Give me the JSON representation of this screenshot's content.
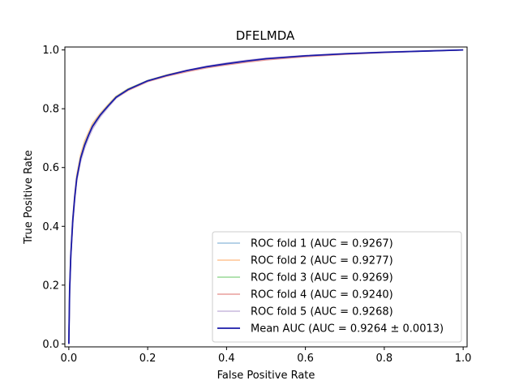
{
  "chart_data": {
    "type": "line",
    "title": "DFELMDA",
    "xlabel": "False Positive Rate",
    "ylabel": "True Positive Rate",
    "xlim": [
      -0.01,
      1.01
    ],
    "ylim": [
      -0.01,
      1.01
    ],
    "xticks": [
      "0.0",
      "0.2",
      "0.4",
      "0.6",
      "0.8",
      "1.0"
    ],
    "yticks": [
      "0.0",
      "0.2",
      "0.4",
      "0.6",
      "0.8",
      "1.0"
    ],
    "grid": false,
    "legend_position": "lower-right",
    "x": [
      0.0,
      0.002,
      0.005,
      0.01,
      0.015,
      0.02,
      0.03,
      0.04,
      0.05,
      0.06,
      0.07,
      0.08,
      0.1,
      0.12,
      0.15,
      0.2,
      0.25,
      0.3,
      0.35,
      0.4,
      0.45,
      0.5,
      0.6,
      0.7,
      0.8,
      0.9,
      1.0
    ],
    "series": [
      {
        "name": "ROC fold 1 (AUC = 0.9267)",
        "color": "#9ec3df",
        "values": [
          0.0,
          0.18,
          0.3,
          0.42,
          0.5,
          0.56,
          0.63,
          0.675,
          0.71,
          0.74,
          0.76,
          0.78,
          0.81,
          0.84,
          0.865,
          0.895,
          0.915,
          0.93,
          0.943,
          0.953,
          0.962,
          0.97,
          0.98,
          0.987,
          0.992,
          0.996,
          1.0
        ]
      },
      {
        "name": "ROC fold 2 (AUC = 0.9277)",
        "color": "#ffc394",
        "values": [
          0.0,
          0.19,
          0.31,
          0.43,
          0.51,
          0.575,
          0.645,
          0.69,
          0.72,
          0.75,
          0.768,
          0.785,
          0.815,
          0.843,
          0.868,
          0.896,
          0.916,
          0.931,
          0.943,
          0.953,
          0.962,
          0.97,
          0.98,
          0.987,
          0.992,
          0.996,
          1.0
        ]
      },
      {
        "name": "ROC fold 3 (AUC = 0.9269)",
        "color": "#98d896",
        "values": [
          0.0,
          0.18,
          0.3,
          0.42,
          0.5,
          0.565,
          0.635,
          0.68,
          0.712,
          0.742,
          0.762,
          0.781,
          0.812,
          0.841,
          0.867,
          0.896,
          0.915,
          0.93,
          0.943,
          0.953,
          0.962,
          0.97,
          0.98,
          0.987,
          0.992,
          0.996,
          1.0
        ]
      },
      {
        "name": "ROC fold 4 (AUC = 0.9240)",
        "color": "#e89d9c",
        "values": [
          0.0,
          0.17,
          0.29,
          0.41,
          0.49,
          0.555,
          0.625,
          0.67,
          0.708,
          0.738,
          0.758,
          0.776,
          0.806,
          0.836,
          0.862,
          0.892,
          0.911,
          0.926,
          0.939,
          0.949,
          0.958,
          0.966,
          0.977,
          0.985,
          0.991,
          0.996,
          1.0
        ]
      },
      {
        "name": "ROC fold 5 (AUC = 0.9268)",
        "color": "#c9b9de",
        "values": [
          0.0,
          0.17,
          0.29,
          0.41,
          0.49,
          0.555,
          0.62,
          0.665,
          0.7,
          0.73,
          0.752,
          0.772,
          0.805,
          0.836,
          0.865,
          0.894,
          0.914,
          0.931,
          0.945,
          0.956,
          0.965,
          0.972,
          0.981,
          0.988,
          0.993,
          0.997,
          1.0
        ]
      },
      {
        "name": "Mean AUC (AUC = 0.9264 ± 0.0013)",
        "color": "#1a1aa8",
        "values": [
          0.0,
          0.18,
          0.3,
          0.42,
          0.5,
          0.562,
          0.632,
          0.676,
          0.71,
          0.74,
          0.76,
          0.779,
          0.81,
          0.839,
          0.865,
          0.895,
          0.914,
          0.93,
          0.943,
          0.953,
          0.962,
          0.97,
          0.98,
          0.987,
          0.992,
          0.996,
          1.0
        ]
      }
    ]
  }
}
